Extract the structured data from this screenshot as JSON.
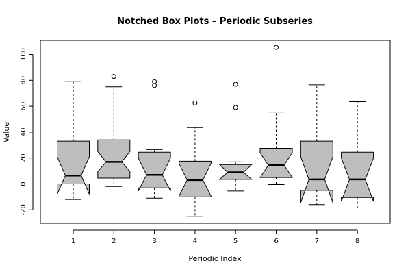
{
  "chart_data": {
    "type": "boxplot",
    "notched": true,
    "title": "Notched Box Plots – Periodic Subseries",
    "xlabel": "Periodic Index",
    "ylabel": "Value",
    "ylim": [
      -30,
      110
    ],
    "yticks": [
      -20,
      0,
      20,
      40,
      60,
      80,
      100
    ],
    "categories": [
      "1",
      "2",
      "3",
      "4",
      "5",
      "6",
      "7",
      "8"
    ],
    "box_color": "#bebebe",
    "series": [
      {
        "category": "1",
        "min": -12,
        "q1": 0,
        "median": 6.5,
        "q3": 33,
        "max": 79,
        "notch": [
          -8,
          21
        ],
        "outliers": []
      },
      {
        "category": "2",
        "min": -2,
        "q1": 4.5,
        "median": 17,
        "q3": 34,
        "max": 75,
        "notch": [
          9.5,
          25
        ],
        "outliers": [
          83
        ]
      },
      {
        "category": "3",
        "min": -11,
        "q1": -3,
        "median": 7,
        "q3": 24.5,
        "max": 26.5,
        "notch": [
          -5.5,
          20
        ],
        "outliers": [
          76,
          79
        ]
      },
      {
        "category": "4",
        "min": -25,
        "q1": -10,
        "median": 3,
        "q3": 17.5,
        "max": 43.5,
        "notch": [
          -9.5,
          16
        ],
        "outliers": [
          62.5
        ]
      },
      {
        "category": "5",
        "min": -5.5,
        "q1": 3.5,
        "median": 9,
        "q3": 15,
        "max": 17,
        "notch": [
          3.5,
          15
        ],
        "outliers": [
          59,
          77
        ]
      },
      {
        "category": "6",
        "min": -0.5,
        "q1": 5,
        "median": 14.5,
        "q3": 27.5,
        "max": 55.5,
        "notch": [
          5,
          24
        ],
        "outliers": [
          105.5
        ]
      },
      {
        "category": "7",
        "min": -16,
        "q1": -5,
        "median": 3.5,
        "q3": 33,
        "max": 76.5,
        "notch": [
          -14.5,
          21
        ],
        "outliers": []
      },
      {
        "category": "8",
        "min": -18.5,
        "q1": -10.5,
        "median": 3.5,
        "q3": 24.5,
        "max": 63.5,
        "notch": [
          -13.5,
          20
        ],
        "outliers": []
      }
    ]
  }
}
